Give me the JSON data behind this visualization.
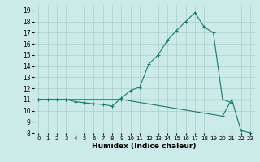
{
  "xlabel": "Humidex (Indice chaleur)",
  "bg_color": "#cceae7",
  "grid_color": "#aad4d0",
  "line_color": "#1a7a6e",
  "xlim": [
    -0.5,
    23.5
  ],
  "ylim": [
    8,
    19.5
  ],
  "xticks": [
    0,
    1,
    2,
    3,
    4,
    5,
    6,
    7,
    8,
    9,
    10,
    11,
    12,
    13,
    14,
    15,
    16,
    17,
    18,
    19,
    20,
    21,
    22,
    23
  ],
  "yticks": [
    8,
    9,
    10,
    11,
    12,
    13,
    14,
    15,
    16,
    17,
    18,
    19
  ],
  "line1_x": [
    0,
    1,
    2,
    3,
    4,
    5,
    6,
    7,
    8,
    9,
    10,
    11,
    12,
    13,
    14,
    15,
    16,
    17,
    18,
    19,
    20,
    21
  ],
  "line1_y": [
    11,
    11,
    11,
    11,
    10.8,
    10.7,
    10.6,
    10.55,
    10.4,
    11.1,
    11.8,
    12.1,
    14.2,
    15.0,
    16.3,
    17.2,
    18.0,
    18.8,
    17.5,
    17.0,
    11.0,
    10.7
  ],
  "line2_x": [
    0,
    1,
    2,
    3,
    4,
    5,
    6,
    7,
    8,
    9,
    10,
    11,
    12,
    13,
    14,
    15,
    16,
    17,
    18,
    19,
    20,
    21,
    22,
    23
  ],
  "line2_y": [
    11,
    11,
    11,
    11,
    11,
    11,
    11,
    11,
    11,
    11,
    11,
    11,
    11,
    11,
    11,
    11,
    11,
    11,
    11,
    11,
    11,
    11,
    11,
    11
  ],
  "line3_x": [
    0,
    3,
    9,
    20,
    21,
    22,
    23
  ],
  "line3_y": [
    11,
    11,
    11,
    9.5,
    11.0,
    8.2,
    8.0
  ]
}
